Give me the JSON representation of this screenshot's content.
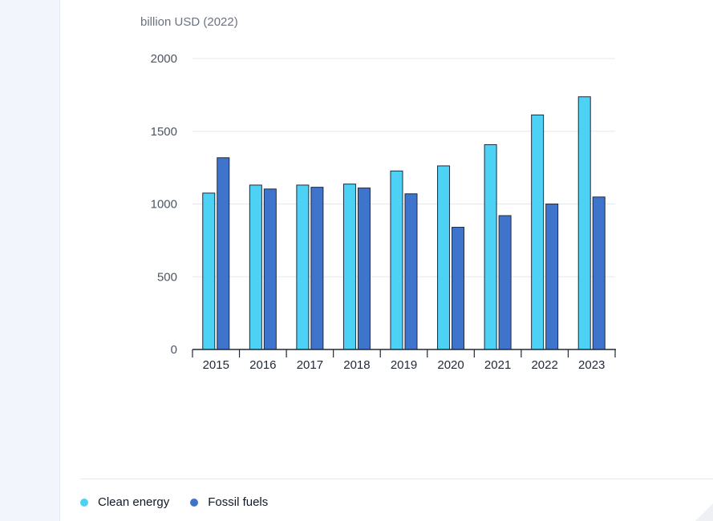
{
  "chart_data": {
    "type": "bar",
    "ylabel": "billion USD (2022)",
    "categories": [
      "2015",
      "2016",
      "2017",
      "2018",
      "2019",
      "2020",
      "2021",
      "2022",
      "2023"
    ],
    "series": [
      {
        "name": "Clean energy",
        "color": "#4dd2f5",
        "values": [
          1075,
          1130,
          1130,
          1137,
          1227,
          1262,
          1408,
          1612,
          1737
        ]
      },
      {
        "name": "Fossil fuels",
        "color": "#3f74cc",
        "values": [
          1318,
          1103,
          1115,
          1110,
          1070,
          840,
          920,
          1000,
          1048
        ]
      }
    ],
    "ylim": [
      0,
      2000
    ],
    "yticks": [
      "0",
      "500",
      "1000",
      "1500",
      "2000"
    ],
    "grid": true,
    "legend": "bottom-left"
  }
}
